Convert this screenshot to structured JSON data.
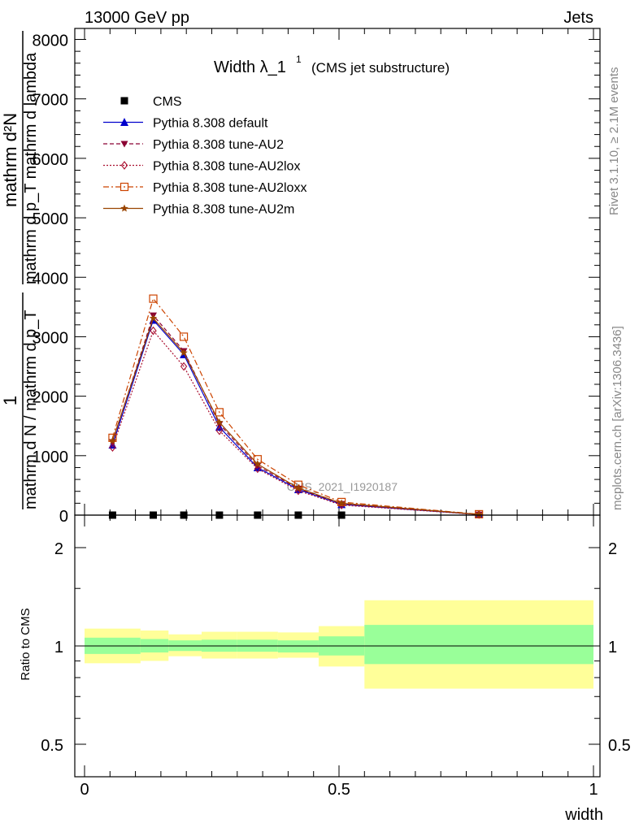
{
  "header": {
    "left": "13000 GeV pp",
    "right": "Jets"
  },
  "side_labels": {
    "rivet": "Rivet 3.1.10, ≥ 2.1M events",
    "mcplots": "mcplots.cern.ch [arXiv:1306.3436]"
  },
  "chart_data": [
    {
      "type": "line",
      "title": "Width λ_1",
      "title_sup": "1",
      "subtitle": "(CMS jet substructure)",
      "ylabel_top": "mathrm d²N",
      "ylabel_bottom": "mathrm d p_T mathrm d lambda",
      "ylabel_prefix_top": "1",
      "ylabel_prefix_bottom": "mathrm d N / mathrm d p_T",
      "watermark": "CMS_2021_I1920187",
      "xlim": [
        0,
        1
      ],
      "ylim": [
        0,
        8000
      ],
      "ytick_labels": [
        "0",
        "1000",
        "2000",
        "3000",
        "4000",
        "5000",
        "6000",
        "7000",
        "8000"
      ],
      "legend_position": "top-left",
      "x": [
        0.055,
        0.135,
        0.195,
        0.265,
        0.34,
        0.42,
        0.505,
        0.775
      ],
      "series": [
        {
          "name": "CMS",
          "color": "#000000",
          "marker": "square",
          "values": [
            0,
            0,
            0,
            0,
            0,
            0,
            0,
            null
          ]
        },
        {
          "name": "Pythia 8.308 default",
          "color": "#0000cc",
          "marker": "triangle-up",
          "dash": "solid",
          "values": [
            1180,
            3280,
            2700,
            1480,
            800,
            430,
            180,
            10
          ]
        },
        {
          "name": "Pythia 8.308 tune-AU2",
          "color": "#8b0033",
          "marker": "triangle-down",
          "dash": "dashed",
          "values": [
            1230,
            3360,
            2760,
            1530,
            830,
            445,
            190,
            12
          ]
        },
        {
          "name": "Pythia 8.308 tune-AU2lox",
          "color": "#aa1030",
          "marker": "diamond",
          "dash": "dotted",
          "values": [
            1140,
            3100,
            2500,
            1420,
            780,
            410,
            170,
            9
          ]
        },
        {
          "name": "Pythia 8.308 tune-AU2loxx",
          "color": "#cc4400",
          "marker": "square-open",
          "dash": "dashdot",
          "values": [
            1300,
            3640,
            3000,
            1730,
            940,
            510,
            220,
            15
          ]
        },
        {
          "name": "Pythia 8.308 tune-AU2m",
          "color": "#994400",
          "marker": "star",
          "dash": "solid",
          "values": [
            1250,
            3310,
            2730,
            1560,
            860,
            455,
            200,
            12
          ]
        }
      ]
    },
    {
      "type": "area",
      "ylabel": "Ratio to CMS",
      "xlabel": "width",
      "xlim": [
        0,
        1
      ],
      "ylim": [
        0.4,
        2.3
      ],
      "y_scale": "log",
      "xtick_labels": [
        "0",
        "0.5",
        "1"
      ],
      "ytick_labels": [
        "0.5",
        "1",
        "2"
      ],
      "reference_line": 1,
      "bins": [
        {
          "x_low": 0.0,
          "x_high": 0.11,
          "stat_low": 0.945,
          "stat_high": 1.06,
          "syst_low": 0.885,
          "syst_high": 1.13
        },
        {
          "x_low": 0.11,
          "x_high": 0.165,
          "stat_low": 0.955,
          "stat_high": 1.05,
          "syst_low": 0.9,
          "syst_high": 1.115
        },
        {
          "x_low": 0.165,
          "x_high": 0.23,
          "stat_low": 0.965,
          "stat_high": 1.04,
          "syst_low": 0.93,
          "syst_high": 1.085
        },
        {
          "x_low": 0.23,
          "x_high": 0.3,
          "stat_low": 0.96,
          "stat_high": 1.045,
          "syst_low": 0.915,
          "syst_high": 1.105
        },
        {
          "x_low": 0.3,
          "x_high": 0.38,
          "stat_low": 0.96,
          "stat_high": 1.045,
          "syst_low": 0.915,
          "syst_high": 1.105
        },
        {
          "x_low": 0.38,
          "x_high": 0.46,
          "stat_low": 0.955,
          "stat_high": 1.04,
          "syst_low": 0.92,
          "syst_high": 1.1
        },
        {
          "x_low": 0.46,
          "x_high": 0.55,
          "stat_low": 0.935,
          "stat_high": 1.07,
          "syst_low": 0.865,
          "syst_high": 1.15
        },
        {
          "x_low": 0.55,
          "x_high": 1.0,
          "stat_low": 0.88,
          "stat_high": 1.16,
          "syst_low": 0.74,
          "syst_high": 1.38
        }
      ],
      "stat_color": "#99ff99",
      "syst_color": "#ffff99"
    }
  ]
}
